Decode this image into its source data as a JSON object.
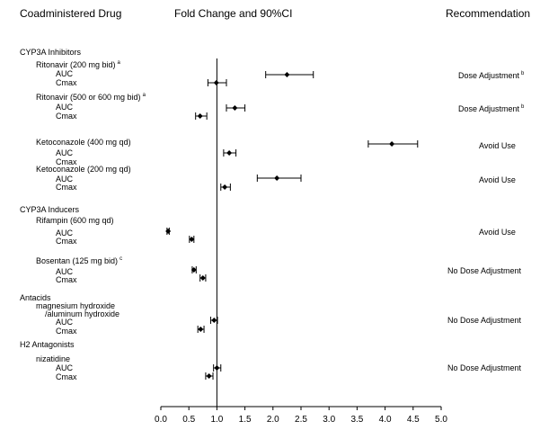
{
  "headers": {
    "drug": "Coadministered Drug",
    "fold": "Fold Change and 90%CI",
    "recommendation": "Recommendation"
  },
  "labels": [
    {
      "text": "CYP3A Inhibitors",
      "sup": ""
    },
    {
      "text": "Ritonavir (200 mg bid)",
      "sup": "a"
    },
    {
      "text": "AUC",
      "sup": ""
    },
    {
      "text": "Cmax",
      "sup": ""
    },
    {
      "text": "Ritonavir (500 or 600  mg bid)",
      "sup": "a"
    },
    {
      "text": "AUC",
      "sup": ""
    },
    {
      "text": "Cmax",
      "sup": ""
    },
    {
      "text": "Ketoconazole (400 mg qd)",
      "sup": ""
    },
    {
      "text": "AUC",
      "sup": ""
    },
    {
      "text": "Cmax",
      "sup": ""
    },
    {
      "text": "Ketoconazole (200 mg qd)",
      "sup": ""
    },
    {
      "text": "AUC",
      "sup": ""
    },
    {
      "text": "Cmax",
      "sup": ""
    },
    {
      "text": "CYP3A Inducers",
      "sup": ""
    },
    {
      "text": "Rifampin (600 mg qd)",
      "sup": ""
    },
    {
      "text": "AUC",
      "sup": ""
    },
    {
      "text": "Cmax",
      "sup": ""
    },
    {
      "text": "Bosentan (125 mg bid)",
      "sup": "c"
    },
    {
      "text": "AUC",
      "sup": ""
    },
    {
      "text": "Cmax",
      "sup": ""
    },
    {
      "text": "Antacids",
      "sup": ""
    },
    {
      "text": "magnesium hydroxide",
      "sup": ""
    },
    {
      "text": "/aluminum hydroxide",
      "sup": ""
    },
    {
      "text": "AUC",
      "sup": ""
    },
    {
      "text": "Cmax",
      "sup": ""
    },
    {
      "text": "H2 Antagonists",
      "sup": ""
    },
    {
      "text": "nizatidine",
      "sup": ""
    },
    {
      "text": "AUC",
      "sup": ""
    },
    {
      "text": "Cmax",
      "sup": ""
    }
  ],
  "recommendations": [
    {
      "text": "Dose Adjustment",
      "sup": "b"
    },
    {
      "text": "Dose Adjustment",
      "sup": "b"
    },
    {
      "text": "Avoid Use",
      "sup": ""
    },
    {
      "text": "Avoid Use",
      "sup": ""
    },
    {
      "text": "Avoid Use",
      "sup": ""
    },
    {
      "text": "No Dose Adjustment",
      "sup": ""
    },
    {
      "text": "No Dose Adjustment",
      "sup": ""
    },
    {
      "text": "No Dose Adjustment",
      "sup": ""
    }
  ],
  "chart_data": {
    "type": "forest",
    "title": "Fold Change and 90%CI",
    "xlim": [
      0,
      5
    ],
    "x_ticks": [
      "0.0",
      "0.5",
      "1.0",
      "1.5",
      "2.0",
      "2.5",
      "3.0",
      "3.5",
      "4.0",
      "4.5",
      "5.0"
    ],
    "reference_line": 1.0,
    "points": [
      {
        "drug": "Ritonavir (200 mg bid)",
        "parameter": "AUC",
        "estimate": 2.25,
        "lower": 1.87,
        "upper": 2.72
      },
      {
        "drug": "Ritonavir (200 mg bid)",
        "parameter": "Cmax",
        "estimate": 0.99,
        "lower": 0.84,
        "upper": 1.17
      },
      {
        "drug": "Ritonavir (500 or 600  mg bid)",
        "parameter": "AUC",
        "estimate": 1.32,
        "lower": 1.17,
        "upper": 1.5
      },
      {
        "drug": "Ritonavir (500 or 600  mg bid)",
        "parameter": "Cmax",
        "estimate": 0.7,
        "lower": 0.62,
        "upper": 0.82
      },
      {
        "drug": "Ketoconazole (400 mg qd)",
        "parameter": "AUC",
        "estimate": 4.12,
        "lower": 3.7,
        "upper": 4.58
      },
      {
        "drug": "Ketoconazole (400 mg qd)",
        "parameter": "Cmax",
        "estimate": 1.22,
        "lower": 1.12,
        "upper": 1.34
      },
      {
        "drug": "Ketoconazole (200 mg qd)",
        "parameter": "AUC",
        "estimate": 2.07,
        "lower": 1.72,
        "upper": 2.5
      },
      {
        "drug": "Ketoconazole (200 mg qd)",
        "parameter": "Cmax",
        "estimate": 1.14,
        "lower": 1.07,
        "upper": 1.24
      },
      {
        "drug": "Rifampin (600 mg qd)",
        "parameter": "AUC",
        "estimate": 0.13,
        "lower": 0.11,
        "upper": 0.15
      },
      {
        "drug": "Rifampin (600 mg qd)",
        "parameter": "Cmax",
        "estimate": 0.55,
        "lower": 0.51,
        "upper": 0.59
      },
      {
        "drug": "Bosentan (125 mg bid)",
        "parameter": "AUC",
        "estimate": 0.59,
        "lower": 0.56,
        "upper": 0.63
      },
      {
        "drug": "Bosentan (125 mg bid)",
        "parameter": "Cmax",
        "estimate": 0.75,
        "lower": 0.7,
        "upper": 0.8
      },
      {
        "drug": "magnesium hydroxide /aluminum hydroxide",
        "parameter": "AUC",
        "estimate": 0.95,
        "lower": 0.89,
        "upper": 1.01
      },
      {
        "drug": "magnesium hydroxide /aluminum hydroxide",
        "parameter": "Cmax",
        "estimate": 0.71,
        "lower": 0.66,
        "upper": 0.77
      },
      {
        "drug": "nizatidine",
        "parameter": "AUC",
        "estimate": 1.0,
        "lower": 0.94,
        "upper": 1.07
      },
      {
        "drug": "nizatidine",
        "parameter": "Cmax",
        "estimate": 0.86,
        "lower": 0.8,
        "upper": 0.93
      }
    ]
  }
}
